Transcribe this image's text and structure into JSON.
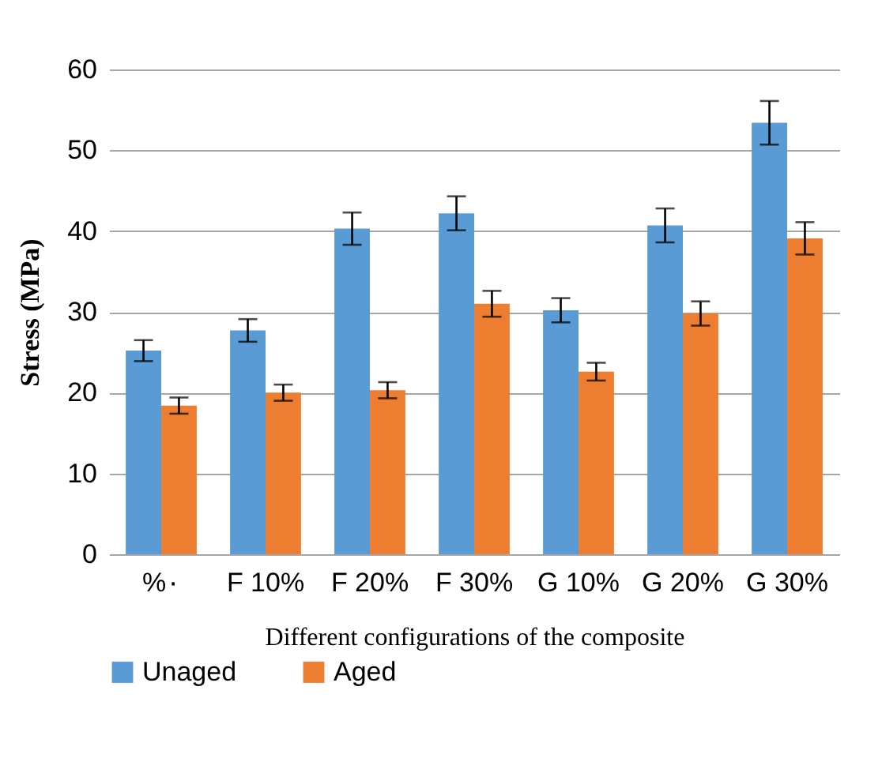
{
  "chart_data": {
    "type": "bar",
    "xlabel": "Different configurations of the composite",
    "ylabel": "Stress (MPa)",
    "categories": [
      "%٠",
      "F 10%",
      "F 20%",
      "F 30%",
      "G 10%",
      "G 20%",
      "G 30%"
    ],
    "series": [
      {
        "name": "Unaged",
        "color": "#5b9bd5",
        "values": [
          25.2,
          27.7,
          40.3,
          42.2,
          30.2,
          40.7,
          53.4
        ],
        "errors": [
          1.3,
          1.4,
          2,
          2.1,
          1.5,
          2.1,
          2.7
        ]
      },
      {
        "name": "Aged",
        "color": "#ed7d31",
        "values": [
          18.4,
          20,
          20.3,
          31,
          22.6,
          29.8,
          39.1
        ],
        "errors": [
          1,
          1,
          1,
          1.6,
          1.1,
          1.5,
          2
        ]
      }
    ],
    "ylim": [
      0,
      60
    ],
    "yticks": [
      0,
      10,
      20,
      30,
      40,
      50,
      60
    ],
    "grid": "y",
    "legend": "bottom"
  }
}
